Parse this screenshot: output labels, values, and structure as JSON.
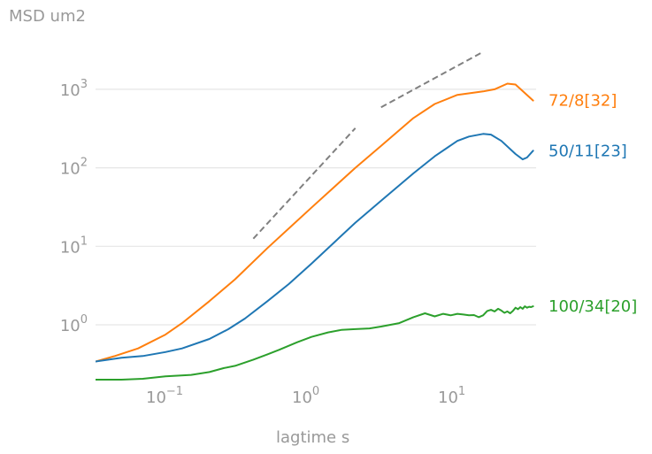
{
  "chart_data": {
    "type": "line",
    "ylabel": "MSD um2",
    "xlabel": "lagtime s",
    "xscale": "log",
    "yscale": "log",
    "xlim": [
      0.033,
      33
    ],
    "ylim": [
      0.18,
      4000
    ],
    "grid": "horizontal",
    "x_ticks": [
      {
        "value": 0.1,
        "base": "10",
        "exp": "−1"
      },
      {
        "value": 1,
        "base": "10",
        "exp": "0"
      },
      {
        "value": 10,
        "base": "10",
        "exp": "1"
      }
    ],
    "y_ticks": [
      {
        "value": 1,
        "base": "10",
        "exp": "0"
      },
      {
        "value": 10,
        "base": "10",
        "exp": "1"
      },
      {
        "value": 100,
        "base": "10",
        "exp": "2"
      },
      {
        "value": 1000,
        "base": "10",
        "exp": "3"
      }
    ],
    "series": [
      {
        "name": "72/8[32]",
        "color": "#ff7f0e",
        "x": [
          0.033,
          0.045,
          0.065,
          0.1,
          0.13,
          0.2,
          0.3,
          0.5,
          1,
          2,
          3,
          5,
          7,
          10,
          15,
          18,
          22,
          25,
          28,
          33
        ],
        "y": [
          0.34,
          0.4,
          0.5,
          0.75,
          1.05,
          2.0,
          3.8,
          9.5,
          31,
          100,
          190,
          430,
          650,
          850,
          940,
          1000,
          1180,
          1150,
          950,
          720
        ]
      },
      {
        "name": "50/11[23]",
        "color": "#1f77b4",
        "x": [
          0.033,
          0.05,
          0.07,
          0.1,
          0.13,
          0.2,
          0.27,
          0.35,
          0.5,
          0.7,
          1,
          2,
          3,
          5,
          7,
          10,
          12,
          15,
          17,
          20,
          25,
          28,
          30,
          33
        ],
        "y": [
          0.34,
          0.38,
          0.4,
          0.45,
          0.5,
          0.66,
          0.88,
          1.2,
          2.0,
          3.3,
          6.0,
          20,
          38,
          85,
          140,
          220,
          250,
          270,
          265,
          220,
          150,
          128,
          135,
          165
        ]
      },
      {
        "name": "100/34[20]",
        "color": "#2ca02c",
        "x": [
          0.033,
          0.05,
          0.07,
          0.1,
          0.15,
          0.2,
          0.25,
          0.3,
          0.4,
          0.5,
          0.6,
          0.8,
          1,
          1.3,
          1.6,
          2,
          2.5,
          3,
          4,
          5,
          6,
          7,
          8,
          9,
          10,
          11,
          12,
          13,
          14,
          15,
          16,
          17,
          18,
          19,
          20,
          21,
          22,
          23,
          24,
          25,
          26,
          27,
          28,
          29,
          30,
          31,
          32,
          33
        ],
        "y": [
          0.2,
          0.2,
          0.205,
          0.22,
          0.23,
          0.25,
          0.28,
          0.3,
          0.36,
          0.42,
          0.48,
          0.6,
          0.7,
          0.8,
          0.86,
          0.88,
          0.9,
          0.95,
          1.05,
          1.25,
          1.4,
          1.28,
          1.38,
          1.32,
          1.38,
          1.35,
          1.32,
          1.33,
          1.25,
          1.32,
          1.5,
          1.55,
          1.48,
          1.6,
          1.52,
          1.42,
          1.48,
          1.4,
          1.5,
          1.65,
          1.58,
          1.68,
          1.6,
          1.72,
          1.65,
          1.7,
          1.68,
          1.72
        ]
      }
    ],
    "reference_lines": [
      {
        "x": [
          0.4,
          2
        ],
        "y": [
          12.5,
          320
        ],
        "color": "#808080",
        "style": "dashed"
      },
      {
        "x": [
          3,
          15
        ],
        "y": [
          590,
          3000
        ],
        "color": "#808080",
        "style": "dashed"
      }
    ]
  }
}
